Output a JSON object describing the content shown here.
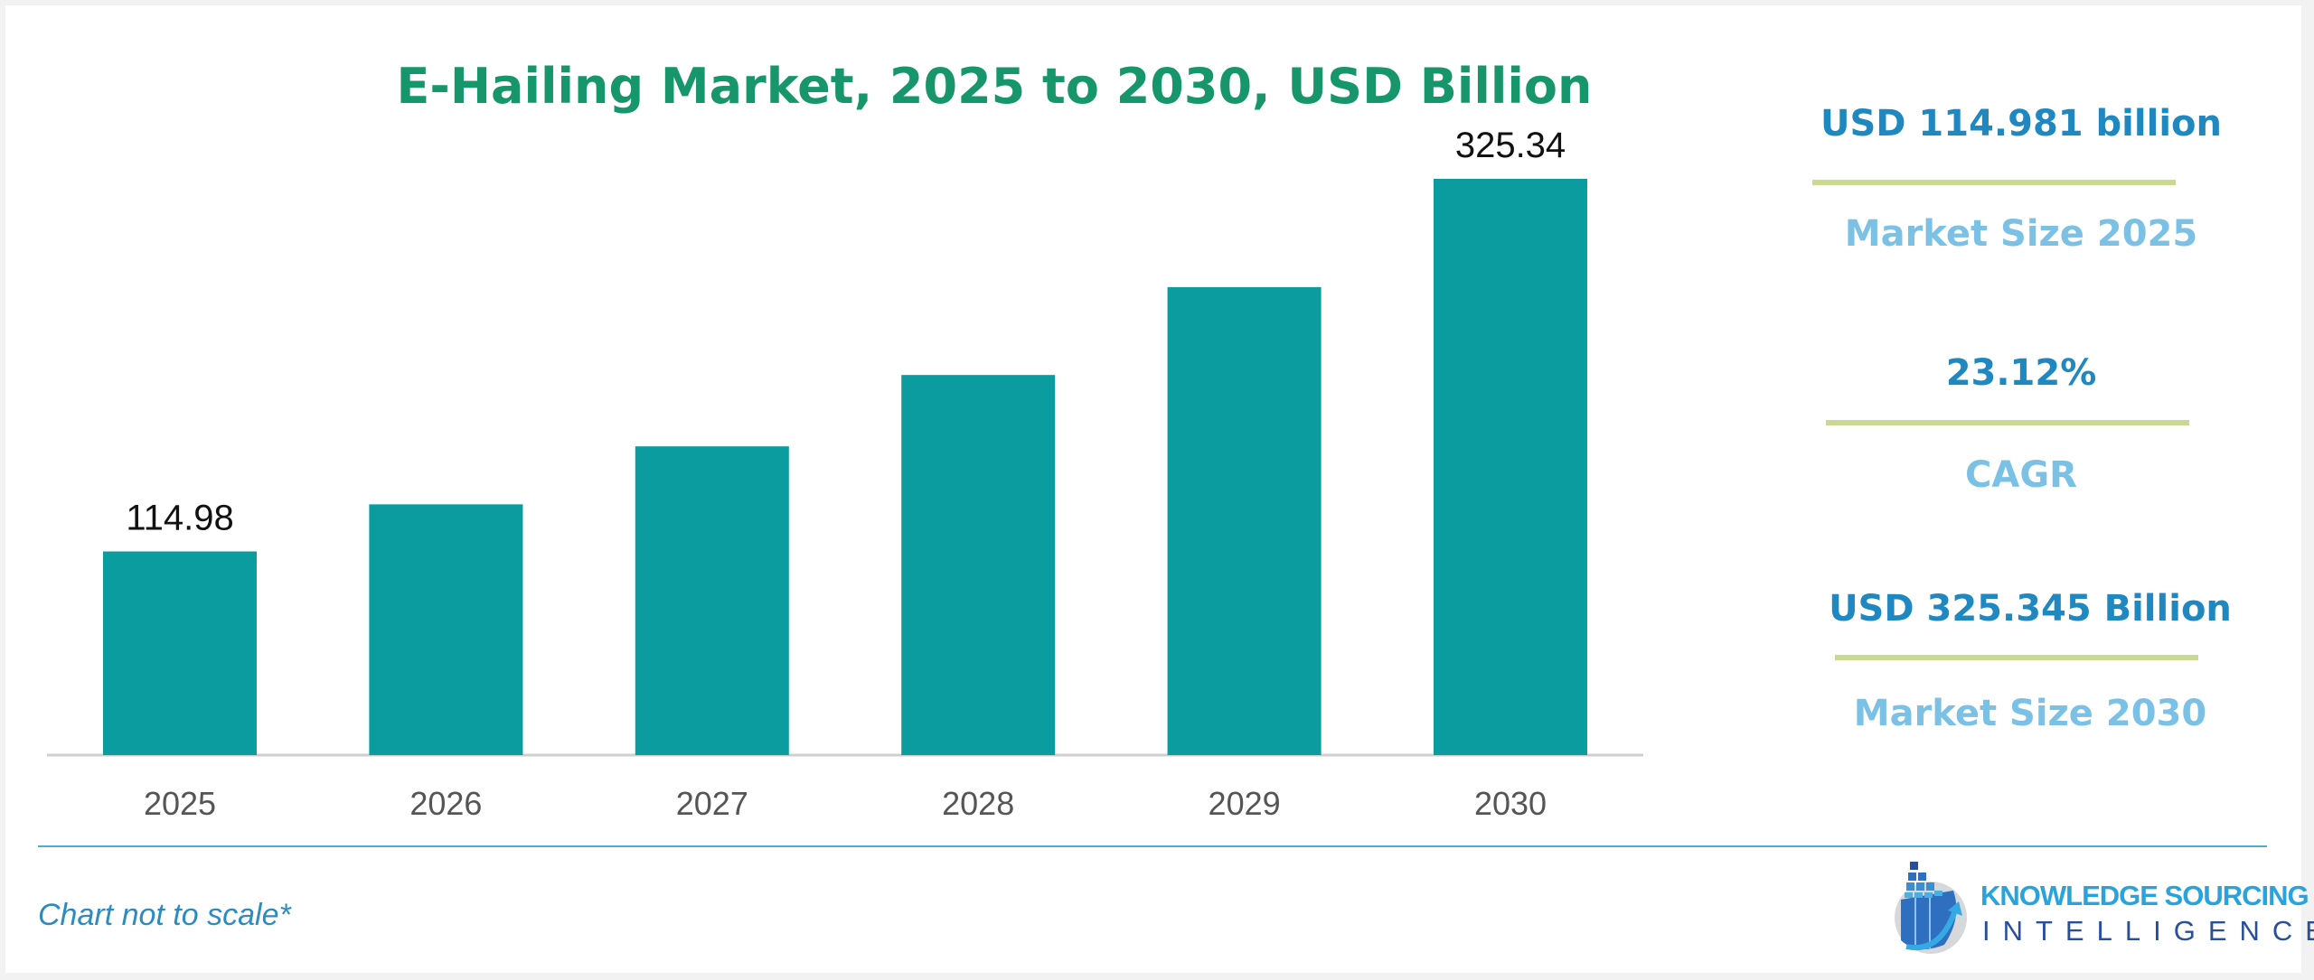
{
  "chart_data": {
    "type": "bar",
    "title": "E-Hailing Market, 2025 to 2030, USD Billion",
    "categories": [
      "2025",
      "2026",
      "2027",
      "2028",
      "2029",
      "2030"
    ],
    "values": [
      114.98,
      141.57,
      174.3,
      214.6,
      264.22,
      325.34
    ],
    "data_labels": {
      "2025": "114.98",
      "2030": "325.34"
    },
    "xlabel": "",
    "ylabel": "",
    "ylim": [
      0,
      325.34
    ],
    "grid": false,
    "bar_color": "#0b9c9f",
    "note": "Chart not to scale*"
  },
  "stats": [
    {
      "value": "USD 114.981 billion",
      "label": "Market Size 2025"
    },
    {
      "value": "23.12%",
      "label": "CAGR"
    },
    {
      "value": "USD 325.345 Billion",
      "label": "Market Size 2030"
    }
  ],
  "logo": {
    "line1": "KNOWLEDGE SOURCING",
    "line2": "INTELLIGENCE"
  },
  "colors": {
    "title": "#17966c",
    "stat_value": "#2088c0",
    "stat_label": "#7bc1e5",
    "rule": "#c9d98f"
  }
}
